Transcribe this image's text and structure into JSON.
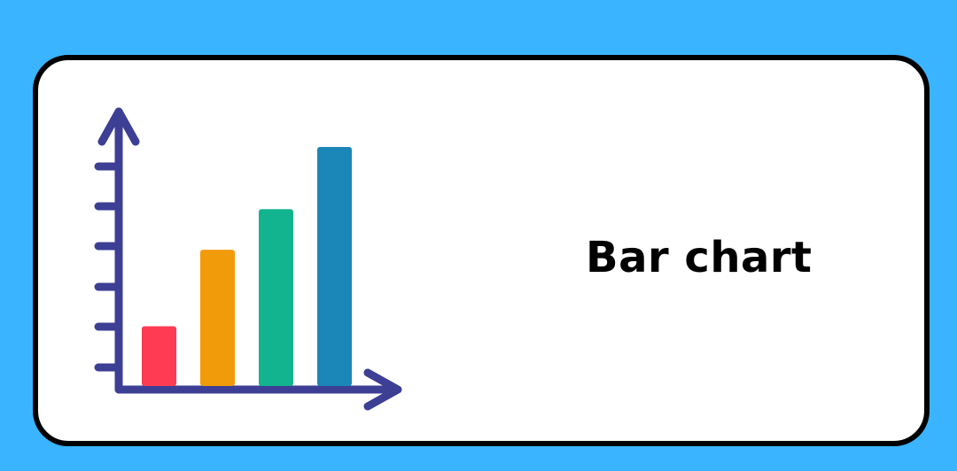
{
  "card": {
    "title": "Bar chart"
  },
  "illustration": {
    "icon": "bar-chart-icon",
    "bar_levels": [
      0.25,
      0.57,
      0.74,
      1.0
    ],
    "colors": {
      "axis": "#3c3f94",
      "bars": [
        "#ff3b53",
        "#f29b0a",
        "#12b48f",
        "#1b86b8"
      ]
    }
  },
  "colors": {
    "background": "#3bb4ff",
    "card": "#ffffff",
    "border": "#000000"
  }
}
